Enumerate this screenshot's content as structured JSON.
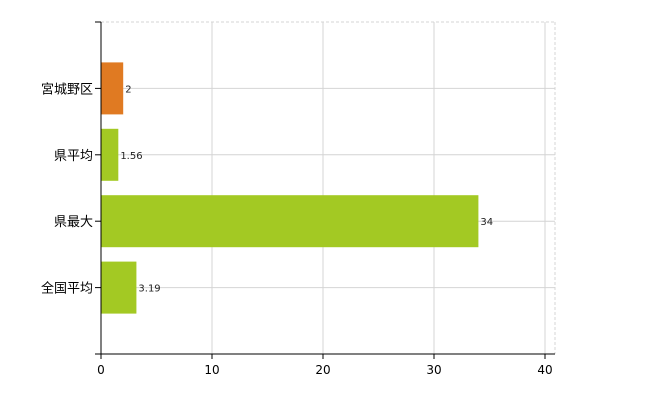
{
  "chart_data": {
    "type": "bar",
    "orientation": "horizontal",
    "title": "",
    "xlabel": "",
    "ylabel": "",
    "categories": [
      "宮城野区",
      "県平均",
      "県最大",
      "全国平均"
    ],
    "values": [
      2,
      1.56,
      34,
      3.19
    ],
    "data_labels": [
      "2",
      "1.56",
      "34",
      "3.19"
    ],
    "colors": [
      "#e07a22",
      "#a3c923",
      "#a3c923",
      "#a3c923"
    ],
    "xlim": [
      0,
      40
    ],
    "xticks": [
      0,
      10,
      20,
      30,
      40
    ],
    "xtick_labels": [
      "0",
      "10",
      "20",
      "30",
      "40"
    ],
    "grid": true,
    "legend": "none"
  }
}
